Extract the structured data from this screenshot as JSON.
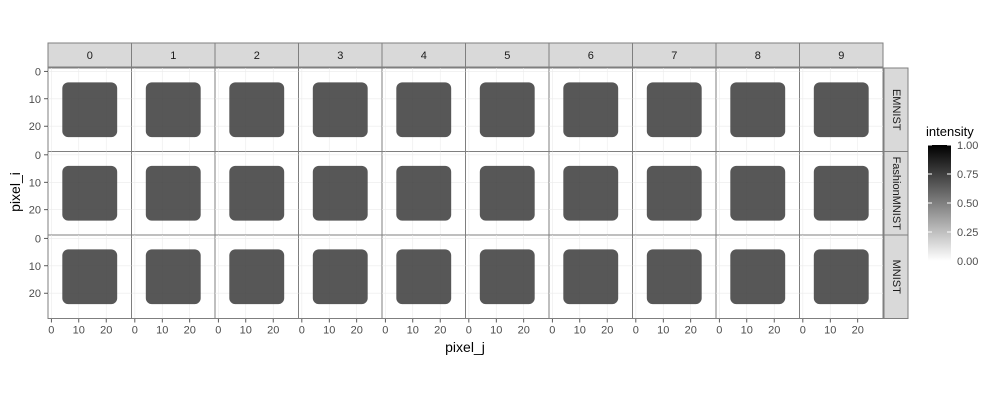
{
  "chart_data": {
    "type": "heatmap",
    "title": "",
    "xlabel": "pixel_j",
    "ylabel": "pixel_i",
    "xlim": [
      0,
      28
    ],
    "ylim": [
      0,
      28
    ],
    "y_reversed": true,
    "x_ticks": [
      "0",
      "10",
      "20"
    ],
    "y_ticks": [
      "0",
      "10",
      "20"
    ],
    "columns": [
      "0",
      "1",
      "2",
      "3",
      "4",
      "5",
      "6",
      "7",
      "8",
      "9"
    ],
    "rows": [
      "EMNIST",
      "FashionMNIST",
      "MNIST"
    ],
    "legend": {
      "title": "intensity",
      "ticks": [
        "1.00",
        "0.75",
        "0.50",
        "0.25",
        "0.00"
      ],
      "position": "right",
      "low_color": "#ffffff",
      "high_color": "#000000"
    },
    "grid": true
  }
}
